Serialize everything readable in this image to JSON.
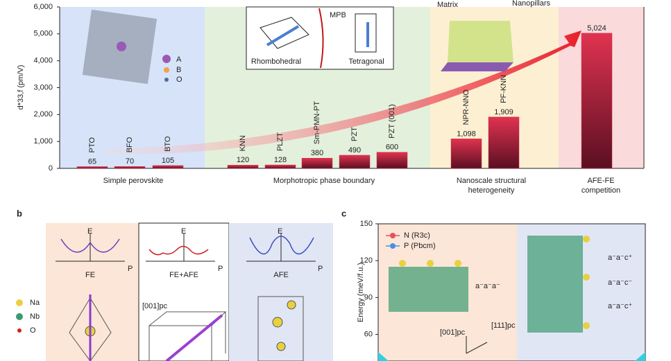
{
  "chart_data": [
    {
      "type": "bar",
      "ylabel": "d*33,f (pm/V)",
      "categories": [
        "PTO",
        "BFO",
        "BTO",
        "KNN",
        "PLZT",
        "Sm-PMN-PT",
        "PZT",
        "PZT (001)",
        "NPR-NNO",
        "PF-KNN",
        null
      ],
      "values": [
        65,
        70,
        105,
        120,
        128,
        380,
        490,
        600,
        1098,
        1909,
        5024
      ],
      "value_labels": [
        "65",
        "70",
        "105",
        "120",
        "128",
        "380",
        "490",
        "600",
        "1,098",
        "1,909",
        "5,024"
      ],
      "groups": [
        "Simple perovskite",
        "Morphotropic phase boundary",
        "Nanoscale structural heterogeneity",
        "AFE-FE competition"
      ],
      "group_colors": [
        "#d6e3f8",
        "#e3f0dc",
        "#fdf0d2",
        "#fadadb"
      ],
      "color": "#d8304a",
      "ylim": [
        0,
        6000
      ],
      "yticks": [
        0,
        {
          "value": 1000,
          "label": "1,000"
        },
        {
          "value": 2000,
          "label": "2,000"
        },
        {
          "value": 3000,
          "label": "3,000"
        },
        {
          "value": 4000,
          "label": "4,000"
        },
        {
          "value": 5000,
          "label": "5,000"
        },
        {
          "value": 6000,
          "label": "6,000"
        }
      ],
      "insets": {
        "atoms": [
          "A",
          "B",
          "O"
        ],
        "mpb": "MPB",
        "rhombohedral": "Rhombohedral",
        "tetragonal": "Tetragonal",
        "matrix": "Matrix",
        "nanopillars": "Nanopillars"
      }
    },
    {
      "type": "line",
      "panel": "c",
      "ylabel": "Energy (meV/f.u.)",
      "ylim": [
        40,
        150
      ],
      "yticks": [
        60,
        90,
        120,
        150
      ],
      "legend": [
        {
          "name": "N (R3c)",
          "color": "#e8505b"
        },
        {
          "name": "P (Pbcm)",
          "color": "#4a90e2"
        }
      ],
      "annotations": [
        "a⁻a⁻a⁻",
        "a⁻a⁻c⁺",
        "a⁻a⁻c⁻",
        "a⁻a⁻c⁺",
        "[001]pc",
        "[111]pc"
      ]
    }
  ],
  "panel_b": {
    "label": "b",
    "axis_e": "E",
    "axis_p": "P",
    "states": [
      "FE",
      "FE+AFE",
      "AFE"
    ],
    "atoms": [
      "Na",
      "Nb",
      "O"
    ],
    "direction": "[001]pc"
  }
}
